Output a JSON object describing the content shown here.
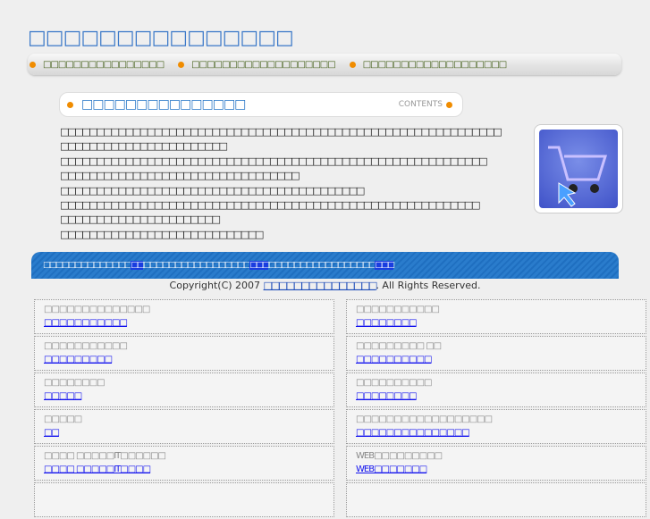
{
  "site_title": "□□□□□□□□□□□□□□□",
  "nav": [
    "□□□□□□□□□□□□□□□□",
    "□□□□□□□□□□□□□□□□□□□",
    "□□□□□□□□□□□□□□□□□□□"
  ],
  "section": {
    "title": "□□□□□□□□□□□□□□□",
    "label": "CONTENTS"
  },
  "body_lines": [
    "□□□□□□□□□□□□□□□□□□□□□□□□□□□□□□□□□□□□□□□□□□□□□□□□□□□□□□□□□□□□□",
    "□□□□□□□□□□□□□□□□□□□□□□□",
    "□□□□□□□□□□□□□□□□□□□□□□□□□□□□□□□□□□□□□□□□□□□□□□□□□□□□□□□□□□□",
    "□□□□□□□□□□□□□□□□□□□□□□□□□□□□□□□□□",
    "□□□□□□□□□□□□□□□□□□□□□□□□□□□□□□□□□□□□□□□□□□",
    "□□□□□□□□□□□□□□□□□□□□□□□□□□□□□□□□□□□□□□□□□□□□□□□□□□□□□□□□□□",
    "□□□□□□□□□□□□□□□□□□□□□□",
    "□□□□□□□□□□□□□□□□□□□□□□□□□□□□"
  ],
  "banner": {
    "t1": "□□□□□□□□□□□□□□",
    "l1": "□□",
    "t2": "□□□□□□□□□□□□□□□□□",
    "l2": "□□□",
    "t3": "□□□□□□□□□□□□□□□□□",
    "l3": "□□□"
  },
  "copyright": {
    "pre": "Copyright(C) 2007 ",
    "link": "□□□□□□□□□□□□□□□",
    "post": ". All Rights Reserved."
  },
  "links": [
    {
      "t": "□□□□□□□□□□□□□□",
      "l": "□□□□□□□□□□□"
    },
    {
      "t": "□□□□□□□□□□□",
      "l": "□□□□□□□□"
    },
    {
      "t": "□□□□□□□□□□□",
      "l": "□□□□□□□□□"
    },
    {
      "t": "□□□□□□□□□ □□",
      "l": "□□□□□□□□□□"
    },
    {
      "t": "□□□□□□□□",
      "l": "□□□□□"
    },
    {
      "t": "□□□□□□□□□□",
      "l": "□□□□□□□□"
    },
    {
      "t": "□□□□□",
      "l": "□□"
    },
    {
      "t": "□□□□□□□□□□□□□□□□□□",
      "l": "□□□□□□□□□□□□□□□"
    },
    {
      "t": "□□□□ □□□□□IT□□□□□□",
      "l": "□□□□ □□□□□IT□□□□"
    },
    {
      "t": "WEB□□□□□□□□□",
      "l": "WEB□□□□□□□"
    }
  ]
}
